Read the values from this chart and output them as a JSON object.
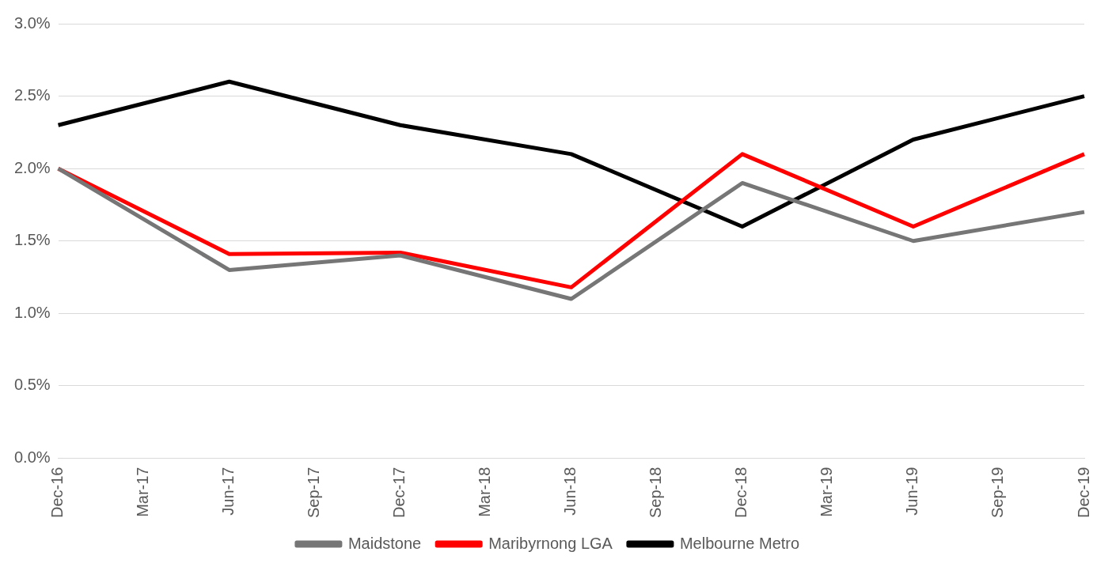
{
  "chart_data": {
    "type": "line",
    "categories": [
      "Dec-16",
      "Mar-17",
      "Jun-17",
      "Sep-17",
      "Dec-17",
      "Mar-18",
      "Jun-18",
      "Sep-18",
      "Dec-18",
      "Mar-19",
      "Jun-19",
      "Sep-19",
      "Dec-19"
    ],
    "series": [
      {
        "name": "Maidstone",
        "color": "#767676",
        "values": [
          2.0,
          null,
          1.3,
          null,
          1.4,
          null,
          1.1,
          null,
          1.9,
          null,
          1.5,
          null,
          1.7
        ]
      },
      {
        "name": "Maribyrnong LGA",
        "color": "#ff0000",
        "values": [
          2.0,
          null,
          1.41,
          null,
          1.42,
          null,
          1.18,
          null,
          2.1,
          null,
          1.6,
          null,
          2.1
        ]
      },
      {
        "name": "Melbourne Metro",
        "color": "#000000",
        "values": [
          2.3,
          null,
          2.6,
          null,
          2.3,
          null,
          2.1,
          null,
          1.6,
          null,
          2.2,
          null,
          2.5
        ]
      }
    ],
    "ylim": [
      0,
      3
    ],
    "yticks": [
      {
        "value": 0,
        "label": "0.0%"
      },
      {
        "value": 0.5,
        "label": "0.5%"
      },
      {
        "value": 1,
        "label": "1.0%"
      },
      {
        "value": 1.5,
        "label": "1.5%"
      },
      {
        "value": 2,
        "label": "2.0%"
      },
      {
        "value": 2.5,
        "label": "2.5%"
      },
      {
        "value": 3,
        "label": "3.0%"
      }
    ],
    "grid": "y",
    "legend": "bottom",
    "marker": "none",
    "line_style": "solid"
  }
}
